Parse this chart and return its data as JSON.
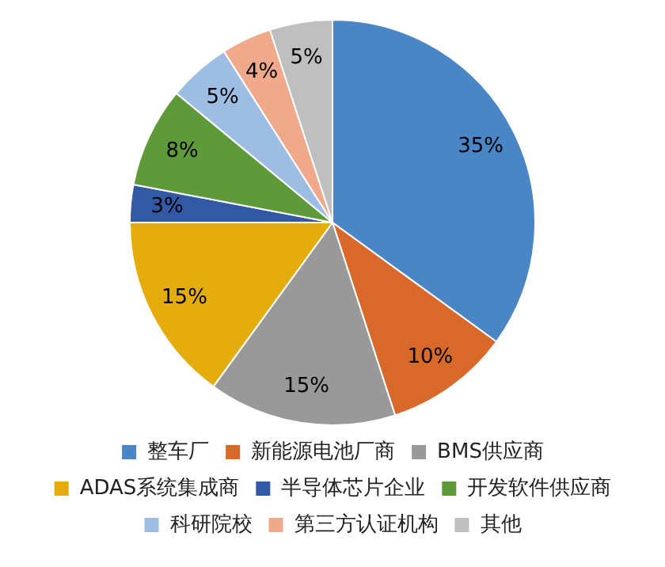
{
  "chart_data": {
    "type": "pie",
    "categories": [
      "整车厂",
      "新能源电池厂商",
      "BMS供应商",
      "ADAS系统集成商",
      "半导体芯片企业",
      "开发软件供应商",
      "科研院校",
      "第三方认证机构",
      "其他"
    ],
    "values": [
      35,
      10,
      15,
      15,
      3,
      8,
      5,
      4,
      5
    ],
    "colors": [
      "#4a86c5",
      "#d9692b",
      "#999999",
      "#e5ac0e",
      "#3358a4",
      "#5e9a3a",
      "#9dbde3",
      "#f0a98a",
      "#bfbfbf"
    ],
    "value_labels": [
      "35%",
      "10%",
      "15%",
      "15%",
      "3%",
      "8%",
      "5%",
      "4%",
      "5%"
    ],
    "legend": "bottom"
  }
}
